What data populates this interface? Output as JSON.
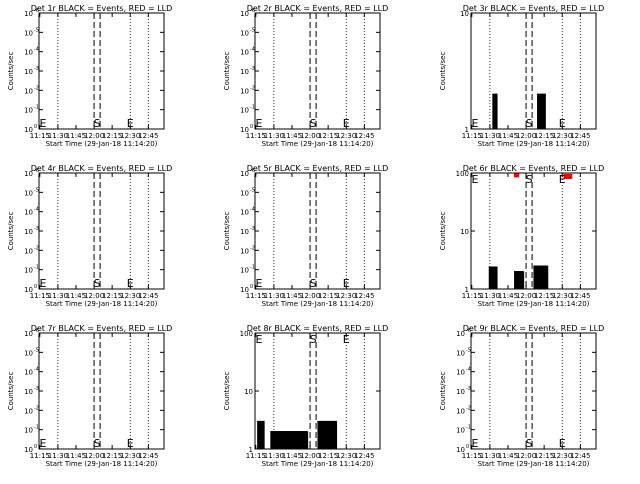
{
  "figure": {
    "xlabel": "Start Time (29-Jan-18 11:14:20)",
    "ylabel": "Counts/sec",
    "xtick_labels": [
      "11:15",
      "11:30",
      "11:45",
      "12:00",
      "12:15",
      "12:30",
      "12:45"
    ],
    "colors": {
      "events": "#000000",
      "lld": "#ff0000"
    }
  },
  "chart_data": [
    {
      "type": "line",
      "panel": 1,
      "title": "Det 1r BLACK = Events, RED = LLD",
      "scale": "log-exp",
      "ytick_main": [
        "10",
        "10",
        "10",
        "10",
        "10",
        "10",
        "10"
      ],
      "ytick_exp": [
        "-6",
        "-5",
        "-4",
        "-3",
        "-2",
        "-1",
        "0"
      ],
      "ylim": [
        1e-06,
        1.0
      ],
      "flare_markers": {
        "S": [
          "12:00:00",
          "12:05:00"
        ],
        "E": "12:30:00"
      },
      "dotted_lines": [
        "11:30:00",
        "12:30:00",
        "12:45:00"
      ],
      "series": []
    },
    {
      "type": "line",
      "panel": 2,
      "title": "Det 2r BLACK = Events, RED = LLD",
      "scale": "log-exp",
      "ytick_main": [
        "10",
        "10",
        "10",
        "10",
        "10",
        "10",
        "10"
      ],
      "ytick_exp": [
        "-6",
        "-5",
        "-4",
        "-3",
        "-2",
        "-1",
        "0"
      ],
      "ylim": [
        1e-06,
        1.0
      ],
      "flare_markers": {
        "S": [
          "12:00:00",
          "12:05:00"
        ],
        "E": "12:30:00"
      },
      "dotted_lines": [
        "11:30:00",
        "12:30:00",
        "12:45:00"
      ],
      "series": []
    },
    {
      "type": "line",
      "panel": 3,
      "title": "Det 3r BLACK = Events, RED = LLD",
      "scale": "log",
      "ytick_main": [
        "10",
        "1"
      ],
      "ytick_exp": [
        "",
        ""
      ],
      "ylim": [
        1,
        10
      ],
      "flare_markers": {
        "S": [
          "12:00:00",
          "12:05:00"
        ],
        "E": "12:30:00"
      },
      "dotted_lines": [
        "11:30:00",
        "12:30:00",
        "12:45:00"
      ],
      "series": [
        {
          "color": "events",
          "style": "jagged",
          "segments": [
            [
              "11:32:00",
              "11:36:00",
              1,
              2
            ],
            [
              "12:09:00",
              "12:16:00",
              1,
              2
            ]
          ]
        }
      ]
    },
    {
      "type": "line",
      "panel": 4,
      "title": "Det 4r BLACK = Events, RED = LLD",
      "scale": "log-exp",
      "ytick_main": [
        "10",
        "10",
        "10",
        "10",
        "10",
        "10",
        "10"
      ],
      "ytick_exp": [
        "-6",
        "-5",
        "-4",
        "-3",
        "-2",
        "-1",
        "0"
      ],
      "ylim": [
        1e-06,
        1.0
      ],
      "flare_markers": {
        "S": [
          "12:00:00",
          "12:05:00"
        ],
        "E": "12:30:00"
      },
      "dotted_lines": [
        "11:30:00",
        "12:30:00",
        "12:45:00"
      ],
      "series": []
    },
    {
      "type": "line",
      "panel": 5,
      "title": "Det 5r BLACK = Events, RED = LLD",
      "scale": "log-exp",
      "ytick_main": [
        "10",
        "10",
        "10",
        "10",
        "10",
        "10",
        "10"
      ],
      "ytick_exp": [
        "-6",
        "-5",
        "-4",
        "-3",
        "-2",
        "-1",
        "0"
      ],
      "ylim": [
        1e-06,
        1.0
      ],
      "flare_markers": {
        "S": [
          "12:00:00",
          "12:05:00"
        ],
        "E": "12:30:00"
      },
      "dotted_lines": [
        "11:30:00",
        "12:30:00",
        "12:45:00"
      ],
      "series": []
    },
    {
      "type": "line",
      "panel": 6,
      "title": "Det 6r BLACK = Events, RED = LLD",
      "scale": "log",
      "ytick_main": [
        "100",
        "10",
        "1"
      ],
      "ytick_exp": [
        "",
        "",
        ""
      ],
      "ylim": [
        1,
        100
      ],
      "flare_markers": {
        "S": [
          "12:00:00",
          "12:05:00"
        ],
        "E": "12:30:00"
      },
      "dotted_lines": [
        "11:30:00",
        "12:30:00",
        "12:45:00"
      ],
      "series": [
        {
          "color": "events",
          "style": "jagged",
          "segments": [
            [
              "11:29:00",
              "11:36:00",
              1,
              2.4
            ],
            [
              "11:50:00",
              "11:58:00",
              1,
              2.0
            ],
            [
              "12:06:00",
              "12:18:00",
              1,
              2.5
            ]
          ]
        },
        {
          "color": "lld",
          "style": "jagged",
          "segments": [
            [
              "11:50:00",
              "11:54:00",
              85,
              98
            ],
            [
              "12:31:00",
              "12:38:00",
              80,
              95
            ]
          ]
        }
      ]
    },
    {
      "type": "line",
      "panel": 7,
      "title": "Det 7r BLACK = Events, RED = LLD",
      "scale": "log-exp",
      "ytick_main": [
        "10",
        "10",
        "10",
        "10",
        "10",
        "10",
        "10"
      ],
      "ytick_exp": [
        "-6",
        "-5",
        "-4",
        "-3",
        "-2",
        "-1",
        "0"
      ],
      "ylim": [
        1e-06,
        1.0
      ],
      "flare_markers": {
        "S": [
          "12:00:00",
          "12:05:00"
        ],
        "E": "12:30:00"
      },
      "dotted_lines": [
        "11:30:00",
        "12:30:00",
        "12:45:00"
      ],
      "series": []
    },
    {
      "type": "line",
      "panel": 8,
      "title": "Det 8r BLACK = Events, RED = LLD",
      "scale": "log",
      "ytick_main": [
        "100",
        "10",
        "1"
      ],
      "ytick_exp": [
        "",
        "",
        ""
      ],
      "ylim": [
        1,
        100
      ],
      "flare_markers": {
        "S": [
          "12:00:00",
          "12:05:00"
        ],
        "E": "12:30:00"
      },
      "dotted_lines": [
        "11:30:00",
        "12:30:00",
        "12:45:00"
      ],
      "series": [
        {
          "color": "events",
          "style": "jagged",
          "segments": [
            [
              "11:16:00",
              "11:22:00",
              1,
              3
            ],
            [
              "11:27:00",
              "11:58:00",
              1,
              2
            ],
            [
              "12:06:00",
              "12:22:00",
              1,
              3
            ]
          ]
        }
      ]
    },
    {
      "type": "line",
      "panel": 9,
      "title": "Det 9r BLACK = Events, RED = LLD",
      "scale": "log-exp",
      "ytick_main": [
        "10",
        "10",
        "10",
        "10",
        "10",
        "10",
        "10"
      ],
      "ytick_exp": [
        "-6",
        "-5",
        "-4",
        "-3",
        "-2",
        "-1",
        "0"
      ],
      "ylim": [
        1e-06,
        1.0
      ],
      "flare_markers": {
        "S": [
          "12:00:00",
          "12:05:00"
        ],
        "E": "12:30:00"
      },
      "dotted_lines": [
        "11:30:00",
        "12:30:00",
        "12:45:00"
      ],
      "series": []
    }
  ]
}
